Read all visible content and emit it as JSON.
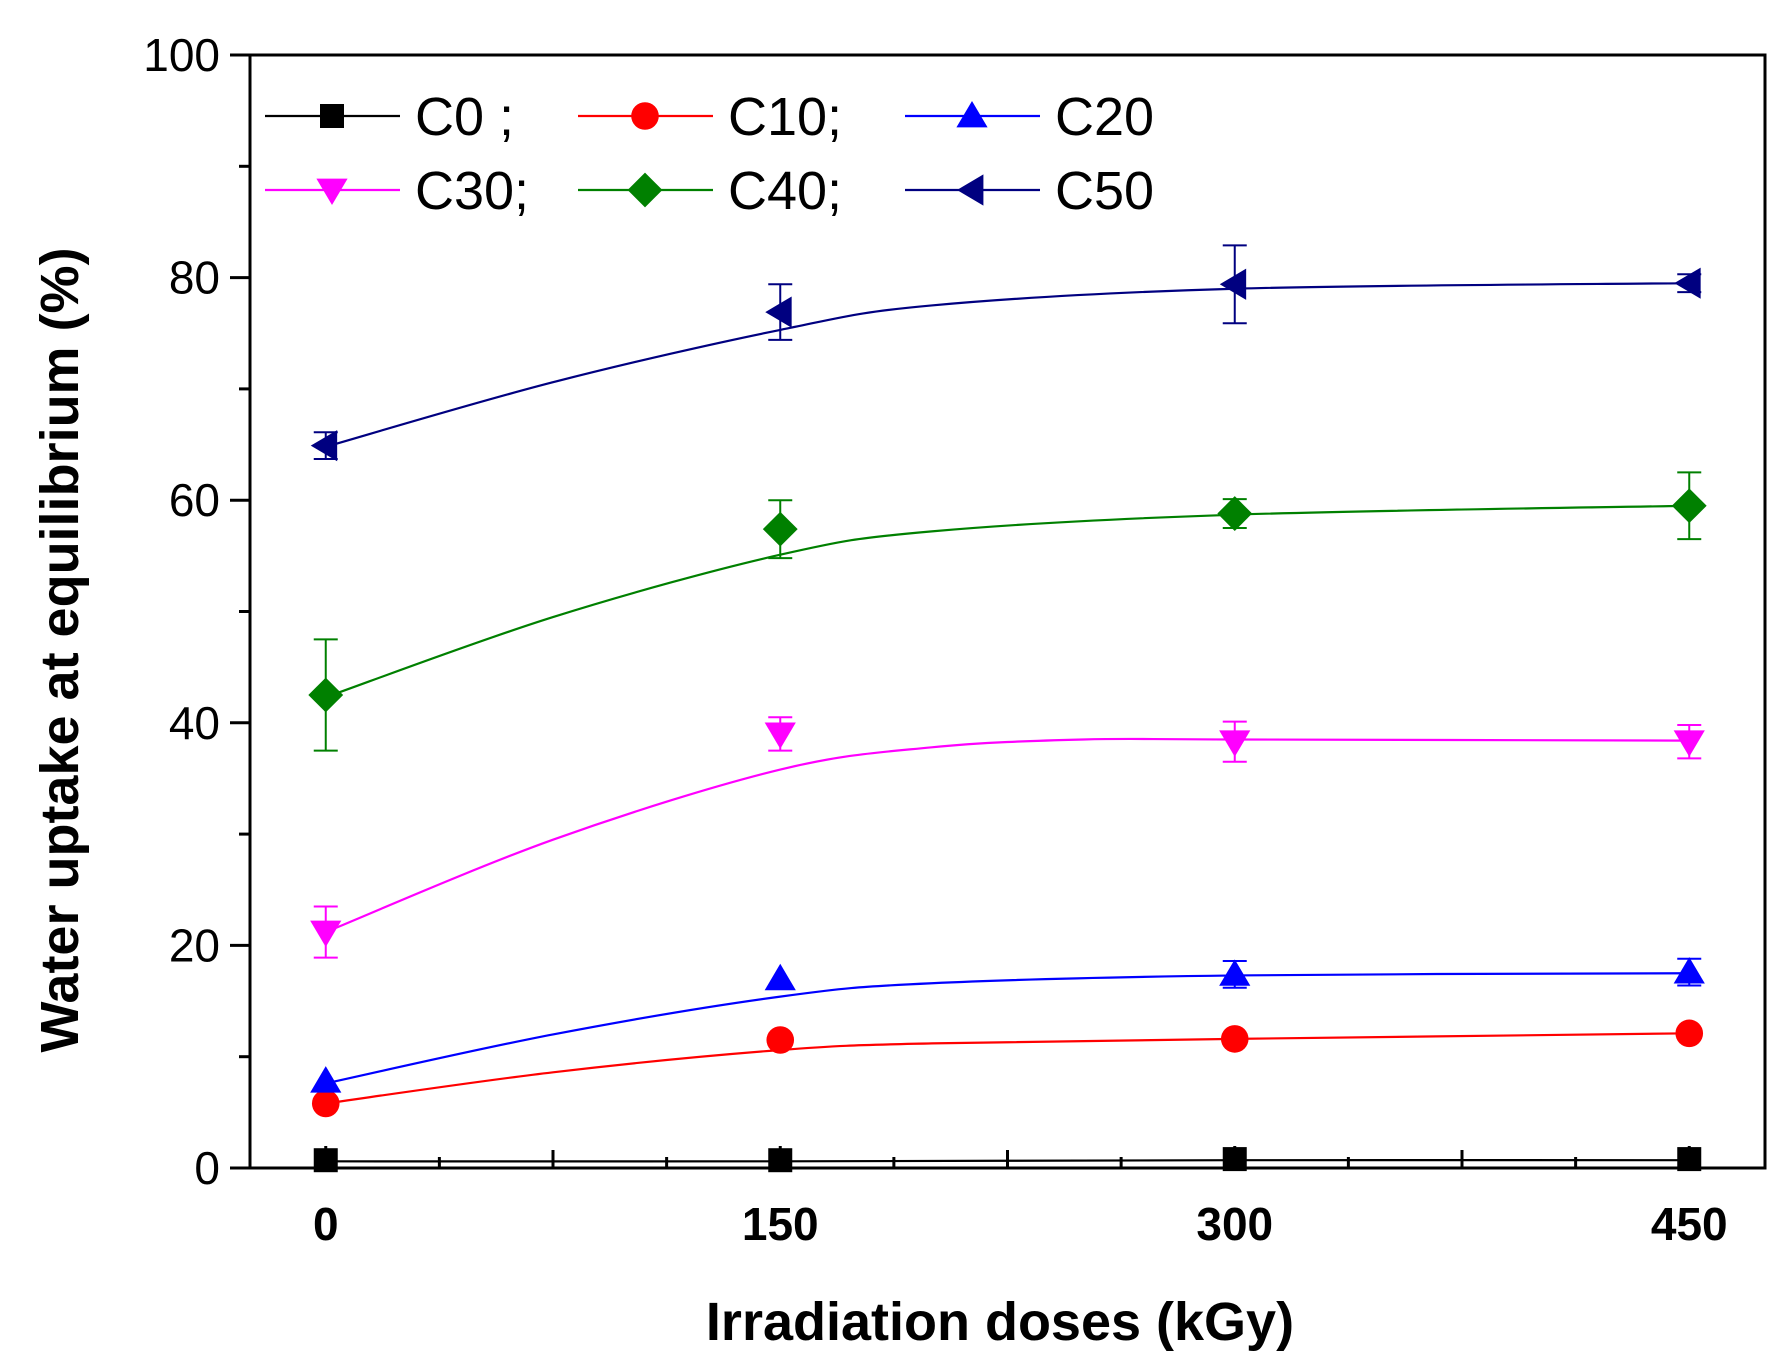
{
  "chart_data": {
    "type": "line",
    "title": "",
    "xlabel": "Irradiation doses (kGy)",
    "ylabel": "Water uptake at equilibrium (%)",
    "xlim": [
      -25,
      475
    ],
    "ylim": [
      0,
      100
    ],
    "x": [
      0,
      150,
      300,
      450
    ],
    "x_tick_labels": [
      "0",
      "150",
      "300",
      "450"
    ],
    "y_ticks": [
      0,
      20,
      40,
      60,
      80,
      100
    ],
    "y_tick_labels": [
      "0",
      "20",
      "40",
      "60",
      "80",
      "100"
    ],
    "grid": false,
    "legend_position": "top-left",
    "series": [
      {
        "name": "C0",
        "legend_label": "C0 ;",
        "color": "#000000",
        "marker": "square",
        "values": [
          0.7,
          0.7,
          0.8,
          0.8
        ],
        "errors": [
          0,
          0,
          0,
          0
        ],
        "fit": [
          [
            0,
            0.6
          ],
          [
            150,
            0.6
          ],
          [
            300,
            0.7
          ],
          [
            450,
            0.7
          ]
        ]
      },
      {
        "name": "C10",
        "legend_label": "C10;",
        "color": "#ff0000",
        "marker": "circle",
        "values": [
          5.8,
          11.5,
          11.6,
          12.1
        ],
        "errors": [
          0,
          0,
          0,
          0
        ],
        "fit": [
          [
            0,
            5.8
          ],
          [
            75,
            8.6
          ],
          [
            150,
            10.6
          ],
          [
            200,
            11.2
          ],
          [
            300,
            11.6
          ],
          [
            450,
            12.1
          ]
        ]
      },
      {
        "name": "C20",
        "legend_label": "C20",
        "color": "#0000ff",
        "marker": "triangle-up",
        "values": [
          7.8,
          17.0,
          17.4,
          17.6
        ],
        "errors": [
          0,
          0,
          1.2,
          1.2
        ],
        "fit": [
          [
            0,
            7.6
          ],
          [
            75,
            12.0
          ],
          [
            150,
            15.4
          ],
          [
            200,
            16.6
          ],
          [
            300,
            17.3
          ],
          [
            450,
            17.5
          ]
        ]
      },
      {
        "name": "C30",
        "legend_label": "C30;",
        "color": "#ff00ff",
        "marker": "triangle-down",
        "values": [
          21.2,
          39.0,
          38.3,
          38.3
        ],
        "errors": [
          2.3,
          1.5,
          1.8,
          1.5
        ],
        "fit": [
          [
            0,
            21.2
          ],
          [
            75,
            29.5
          ],
          [
            150,
            35.8
          ],
          [
            200,
            37.8
          ],
          [
            250,
            38.5
          ],
          [
            300,
            38.5
          ],
          [
            450,
            38.4
          ]
        ]
      },
      {
        "name": "C40",
        "legend_label": "C40;",
        "color": "#008000",
        "marker": "diamond",
        "values": [
          42.5,
          57.4,
          58.8,
          59.5
        ],
        "errors": [
          5.0,
          2.6,
          1.3,
          3.0
        ],
        "fit": [
          [
            0,
            42.3
          ],
          [
            75,
            49.5
          ],
          [
            150,
            55.1
          ],
          [
            200,
            57.2
          ],
          [
            300,
            58.7
          ],
          [
            450,
            59.5
          ]
        ]
      },
      {
        "name": "C50",
        "legend_label": "C50",
        "color": "#000080",
        "marker": "triangle-left",
        "values": [
          64.9,
          76.9,
          79.4,
          79.5
        ],
        "errors": [
          1.2,
          2.5,
          3.5,
          0.8
        ],
        "fit": [
          [
            0,
            64.8
          ],
          [
            75,
            70.6
          ],
          [
            150,
            75.3
          ],
          [
            200,
            77.5
          ],
          [
            300,
            79.0
          ],
          [
            450,
            79.5
          ]
        ]
      }
    ]
  }
}
